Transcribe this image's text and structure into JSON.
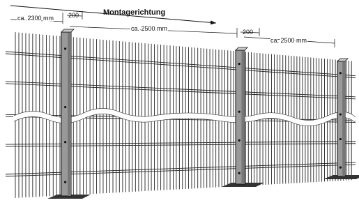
{
  "title": "Montagerichtung",
  "dimensions": [
    "ca. 2300 mm",
    "200",
    "ca. 2500 mm",
    "200",
    "ca. 2500 mm"
  ]
}
